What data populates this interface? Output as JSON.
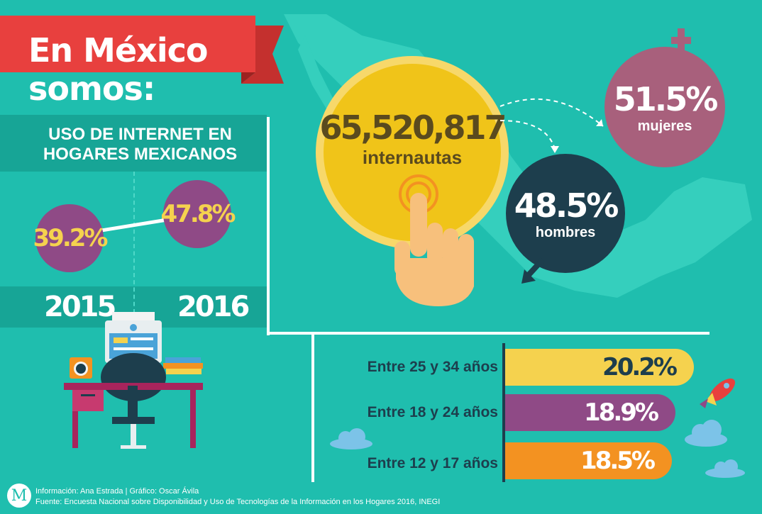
{
  "title": "En México somos:",
  "internet_section": {
    "heading": "USO DE INTERNET EN HOGARES MEXICANOS",
    "values": [
      {
        "year": "2015",
        "percent": "39.2%"
      },
      {
        "year": "2016",
        "percent": "47.8%"
      }
    ]
  },
  "users": {
    "count": "65,520,817",
    "label": "internautas"
  },
  "gender": {
    "women": {
      "percent": "51.5%",
      "label": "mujeres"
    },
    "men": {
      "percent": "48.5%",
      "label": "hombres"
    }
  },
  "age_groups": [
    {
      "label": "Entre 25 y 34 años",
      "value": "20.2%",
      "color": "#f5d24e"
    },
    {
      "label": "Entre 18 y 24 años",
      "value": "18.9%",
      "color": "#8f4a86"
    },
    {
      "label": "Entre 12 y 17 años",
      "value": "18.5%",
      "color": "#f39221"
    }
  ],
  "logo_letter": "M",
  "credits": {
    "line1": "Información: Ana Estrada | Gráfico: Oscar Ávila",
    "line2": "Fuente: Encuesta Nacional sobre Disponibilidad y Uso de Tecnologías de la Información en los Hogares 2016, INEGI"
  },
  "colors": {
    "background": "#1fbeae",
    "banner": "#e8403e",
    "yellow": "#f0c419",
    "purple": "#8f4a86",
    "navy": "#1d3e4d",
    "mauve": "#a8607c"
  }
}
